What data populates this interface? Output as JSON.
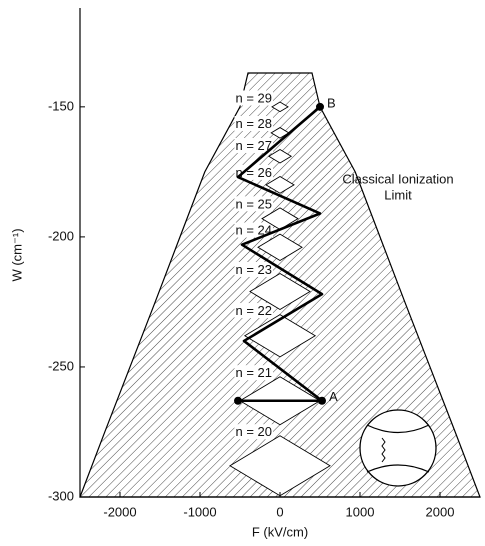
{
  "chart_data": {
    "type": "stark-map",
    "xlabel": "F (kV/cm)",
    "ylabel": "W (cm⁻¹)",
    "xlim": [
      -2500,
      2500
    ],
    "ylim": [
      -300,
      -112
    ],
    "xticks": [
      -2000,
      -1000,
      0,
      1000,
      2000
    ],
    "yticks": [
      -300,
      -250,
      -200,
      -150
    ],
    "limit": {
      "name": [
        "Classical Ionization",
        "Limit"
      ],
      "x": [
        -2500,
        -2190,
        -1875,
        -1560,
        -1250,
        -940,
        -500,
        -400,
        400,
        500,
        940,
        1250,
        1560,
        1875,
        2190,
        2500
      ],
      "y": [
        -300,
        -275,
        -250,
        -225,
        -200,
        -175,
        -150,
        -137,
        -137,
        -150,
        -175,
        -200,
        -225,
        -250,
        -275,
        -300
      ]
    },
    "levels": {
      "labels": [
        "n = 20",
        "n = 21",
        "n = 22",
        "n = 23",
        "n = 24",
        "n = 25",
        "n = 26",
        "n = 27",
        "n = 28",
        "n = 29"
      ],
      "y": [
        -288,
        -263,
        -238,
        -221,
        -204,
        -193,
        -180,
        -169,
        -160,
        -150
      ],
      "halfwidth": [
        625,
        500,
        440,
        375,
        275,
        225,
        175,
        140,
        110,
        100
      ]
    },
    "path": {
      "x": [
        -525,
        525,
        -450,
        525,
        -475,
        500,
        -525,
        500
      ],
      "y": [
        -263,
        -263,
        -240,
        -222,
        -203,
        -191,
        -177,
        -150
      ]
    },
    "points": [
      {
        "label": "A",
        "x": 525,
        "y": -263
      },
      {
        "label": "B",
        "x": 500,
        "y": -150
      }
    ]
  }
}
